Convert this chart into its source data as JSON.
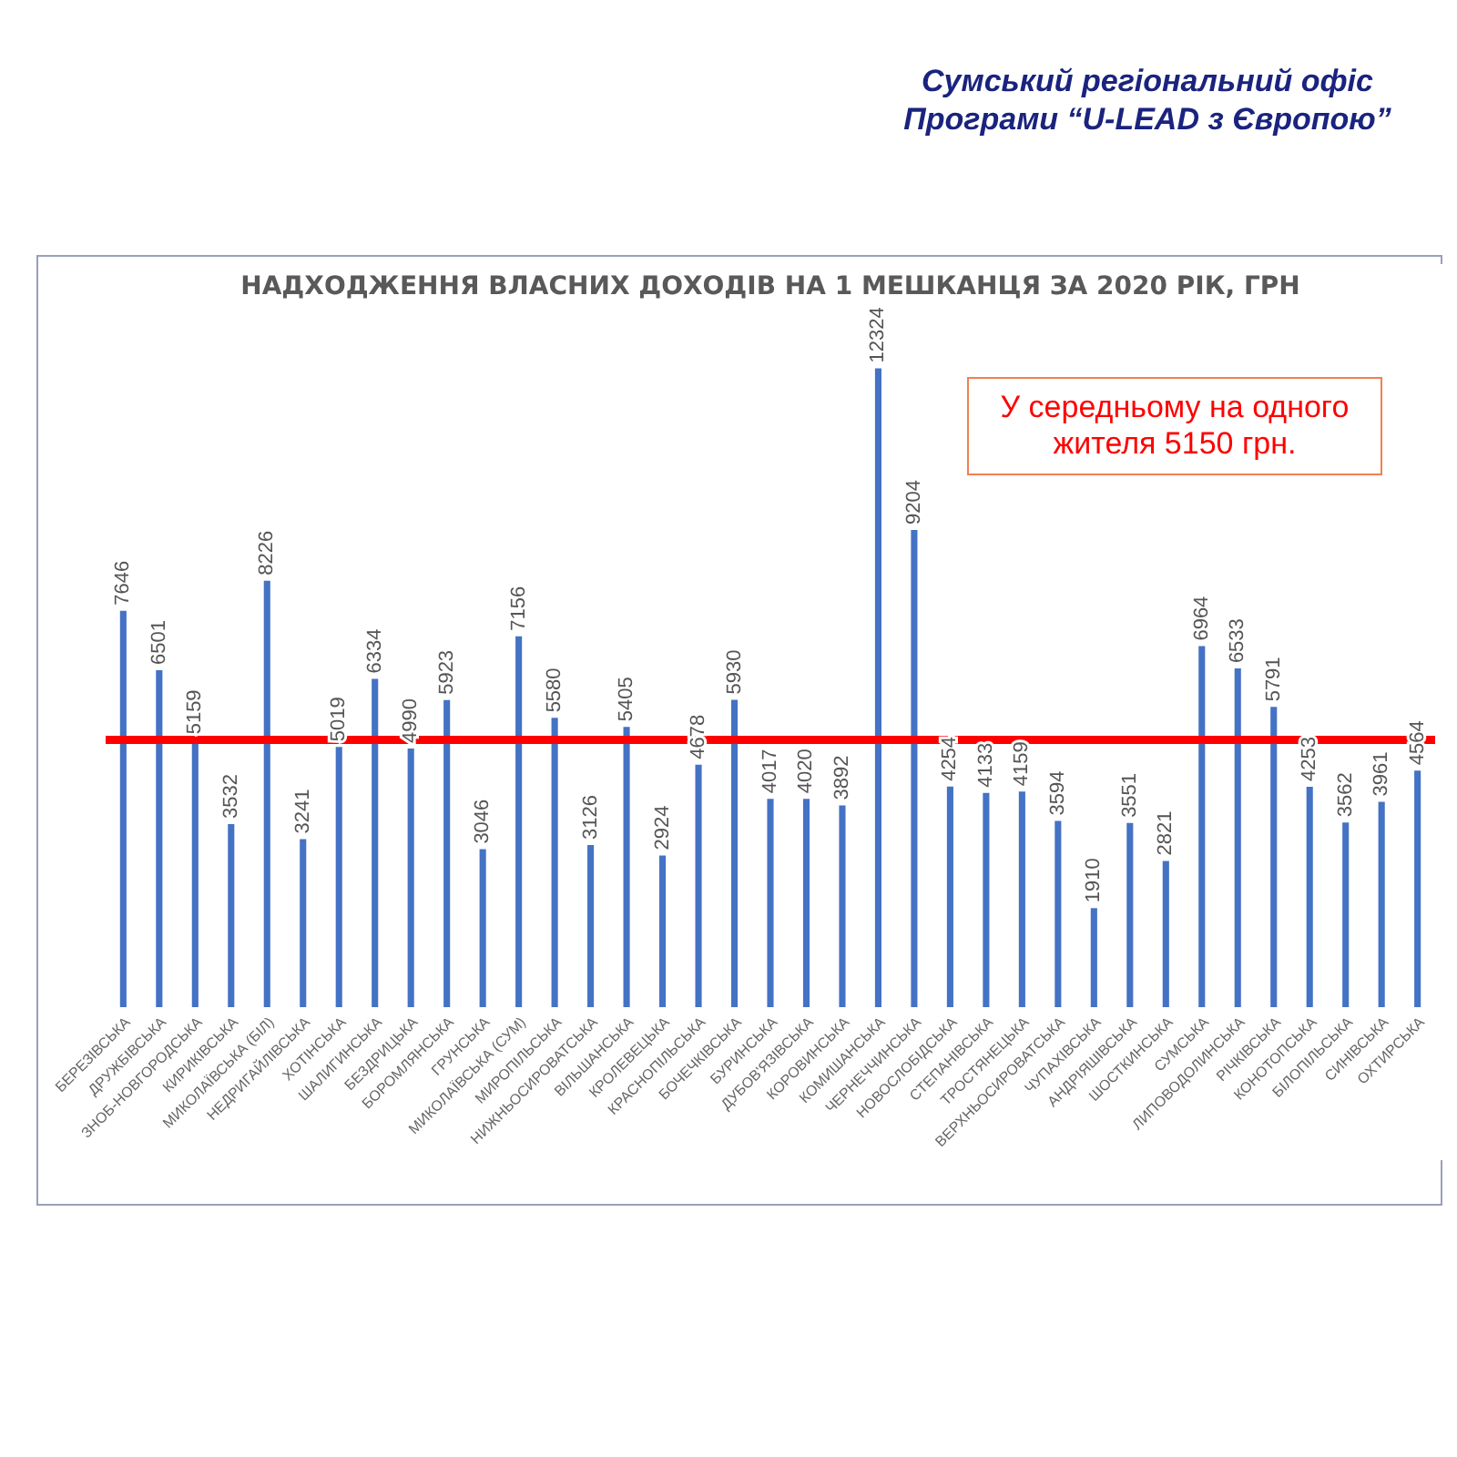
{
  "chart_data": {
    "type": "bar",
    "title": "НАДХОДЖЕННЯ ВЛАСНИХ ДОХОДІВ НА 1 МЕШКАНЦЯ ЗА 2020 РІК, ГРН",
    "annotations": [
      "Сумський регіональний офіс Програми “U-LEAD з Європою”"
    ],
    "categories": [
      "БЕРЕЗІВСЬКА",
      "ДРУЖБІВСЬКА",
      "ЗНОБ-НОВГОРОДСЬКА",
      "КИРИКІВСЬКА",
      "МИКОЛАЇВСЬКА (БІЛ)",
      "НЕДРИГАЙЛІВСЬКА",
      "ХОТІНСЬКА",
      "ШАЛИГИНСЬКА",
      "БЕЗДРИЦЬКА",
      "БОРОМЛЯНСЬКА",
      "ГРУНСЬКА",
      "МИКОЛАЇВСЬКА (СУМ)",
      "МИРОПІЛЬСЬКА",
      "НИЖНЬОСИРОВАТСЬКА",
      "ВІЛЬШАНСЬКА",
      "КРОЛЕВЕЦЬКА",
      "КРАСНОПІЛЬСЬКА",
      "БОЧЕЧКІВСЬКА",
      "БУРИНСЬКА",
      "ДУБОВ'ЯЗІВСЬКА",
      "КОРОВИНСЬКА",
      "КОМИШАНСЬКА",
      "ЧЕРНЕЧЧИНСЬКА",
      "НОВОСЛОБІДСЬКА",
      "СТЕПАНІВСЬКА",
      "ТРОСТЯНЕЦЬКА",
      "ВЕРХНЬОСИРОВАТСЬКА",
      "ЧУПАХІВСЬКА",
      "АНДРІЯШІВСЬКА",
      "ШОСТКИНСЬКА",
      "СУМСЬКА",
      "ЛИПОВОДОЛИНСЬКА",
      "РІЧКІВСЬКА",
      "КОНОТОПСЬКА",
      "БІЛОПІЛЬСЬКА",
      "СИНІВСЬКА",
      "ОХТИРСЬКА"
    ],
    "values": [
      7646,
      6501,
      5159,
      3532,
      8226,
      3241,
      5019,
      6334,
      4990,
      5923,
      3046,
      7156,
      5580,
      3126,
      5405,
      2924,
      4678,
      5930,
      4017,
      4020,
      3892,
      12324,
      9204,
      4254,
      4133,
      4159,
      3594,
      1910,
      3551,
      2821,
      6964,
      6533,
      5791,
      4253,
      3562,
      3961,
      4564
    ],
    "color": "#4472c4",
    "data_labels": true,
    "ref_lines": [
      {
        "axis": "y",
        "value": 5150,
        "label": "У середньому  на одного жителя  5150 грн.",
        "color": "#ff0000"
      }
    ]
  }
}
